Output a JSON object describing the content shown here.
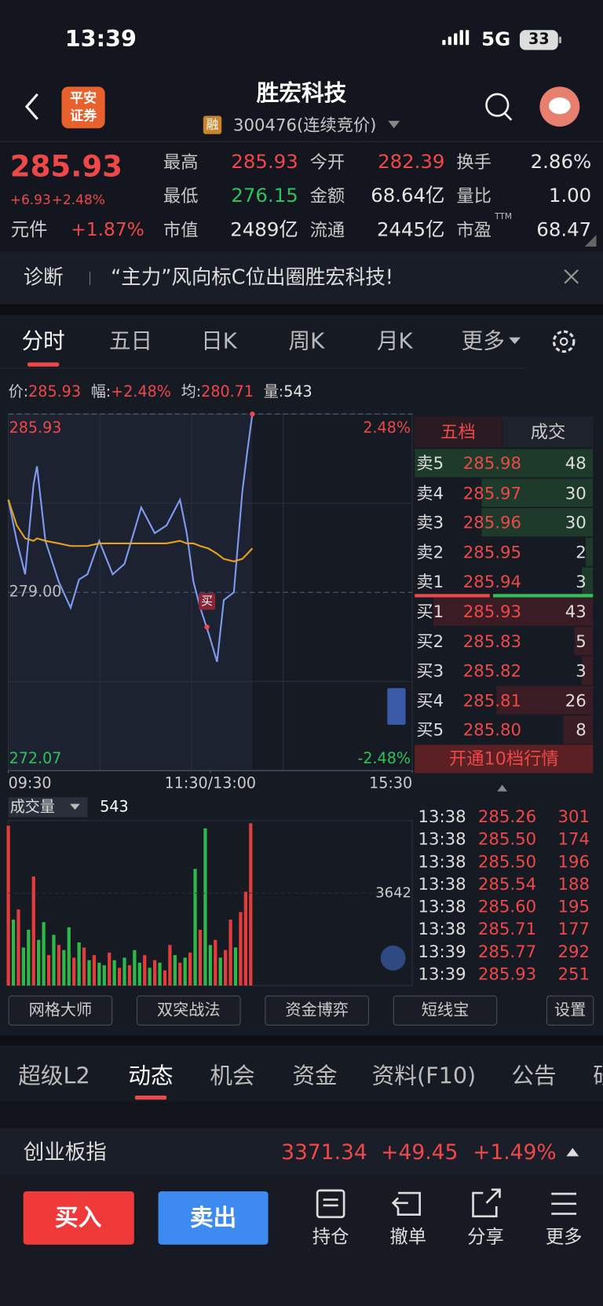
{
  "status_bar": {
    "time": "13:39",
    "network": "5G",
    "battery": "33"
  },
  "header": {
    "broker": [
      "平安",
      "证券"
    ],
    "title": "胜宏科技",
    "margin_tag": "融",
    "code": "300476(连续竞价)"
  },
  "quote": {
    "price": "285.93",
    "change": "+6.93",
    "change_pct": "+2.48%",
    "sector": "元件",
    "sector_change": "+1.87%",
    "pe_suffix": "TTM",
    "fields": [
      {
        "label": "最高",
        "value": "285.93",
        "color": "#f04848"
      },
      {
        "label": "今开",
        "value": "282.39",
        "color": "#f04848"
      },
      {
        "label": "换手",
        "value": "2.86%",
        "color": "#e6e6e6"
      },
      {
        "label": "最低",
        "value": "276.15",
        "color": "#2fc25b"
      },
      {
        "label": "金额",
        "value": "68.64亿",
        "color": "#e6e6e6"
      },
      {
        "label": "量比",
        "value": "1.00",
        "color": "#e6e6e6"
      },
      {
        "label": "市值",
        "value": "2489亿",
        "color": "#e6e6e6"
      },
      {
        "label": "流通",
        "value": "2445亿",
        "color": "#e6e6e6"
      },
      {
        "label": "市盈",
        "value": "68.47",
        "color": "#e6e6e6"
      }
    ]
  },
  "diagnosis": {
    "label": "诊断",
    "text": "“主力”风向标C位出圈胜宏科技!"
  },
  "chart_tabs": {
    "items": [
      "分时",
      "五日",
      "日K",
      "周K",
      "月K",
      "更多"
    ],
    "active": 0
  },
  "chart_info": [
    {
      "label": "价:",
      "value": "285.93",
      "color": "#f04848"
    },
    {
      "label": "幅:",
      "value": "+2.48%",
      "color": "#f04848"
    },
    {
      "label": "均:",
      "value": "280.71",
      "color": "#f04848"
    },
    {
      "label": "量:",
      "value": "543",
      "color": "#e6e6e6"
    }
  ],
  "chart_data": [
    {
      "type": "line",
      "x": [
        0,
        5,
        10,
        15,
        17,
        22,
        30,
        37,
        42,
        47,
        54,
        62,
        69,
        79,
        87,
        94,
        102,
        106,
        110,
        114,
        119,
        124,
        128,
        134,
        139,
        142,
        145
      ],
      "series": [
        {
          "color": "#7f9bf0",
          "values": [
            282.6,
            281.0,
            279.7,
            283.2,
            283.9,
            281.0,
            279.4,
            278.4,
            279.5,
            279.7,
            281.0,
            279.7,
            280.1,
            282.3,
            281.3,
            281.6,
            282.6,
            281.3,
            279.4,
            278.4,
            277.4,
            276.3,
            278.7,
            279.0,
            282.9,
            284.5,
            285.93
          ]
        },
        {
          "color": "#e8a020",
          "values": [
            282.6,
            281.6,
            281.1,
            281.0,
            281.1,
            281.0,
            280.9,
            280.8,
            280.8,
            280.8,
            280.9,
            280.9,
            280.9,
            280.9,
            280.9,
            280.9,
            281.0,
            280.9,
            280.9,
            280.8,
            280.7,
            280.5,
            280.3,
            280.2,
            280.3,
            280.5,
            280.71
          ]
        }
      ],
      "xlim": [
        0,
        240
      ],
      "xticks": [
        {
          "value": 0,
          "label": "09:30"
        },
        {
          "value": 120,
          "label": "11:30/13:00"
        },
        {
          "value": 240,
          "label": "15:30"
        }
      ],
      "ylim": [
        272.07,
        285.93
      ],
      "yticks": [
        285.93,
        {
          "value": 279,
          "label": "279.00"
        },
        272.07
      ],
      "y2lim": [
        -2.48,
        2.48
      ],
      "y2ticks": [
        {
          "value": 2.48,
          "label": "2.48%"
        },
        {
          "value": -2.48,
          "label": "-2.48%"
        }
      ],
      "grid": true,
      "buy_marker": {
        "label": "买",
        "x": 118,
        "value": 277.65
      }
    },
    {
      "type": "bar",
      "title": "成交量",
      "latest": "543",
      "x": [
        0,
        3,
        6,
        9,
        12,
        15,
        18,
        21,
        24,
        27,
        30,
        33,
        36,
        39,
        42,
        45,
        48,
        51,
        54,
        57,
        60,
        63,
        66,
        69,
        72,
        75,
        78,
        81,
        84,
        87,
        90,
        93,
        96,
        99,
        102,
        105,
        108,
        111,
        114,
        117,
        120,
        123,
        126,
        129,
        132,
        135,
        138,
        141,
        144
      ],
      "values": [
        6300,
        2600,
        3000,
        1500,
        2200,
        4300,
        1800,
        2500,
        1200,
        2000,
        1600,
        1400,
        2300,
        1100,
        1700,
        1500,
        1000,
        1200,
        900,
        800,
        1300,
        1000,
        700,
        1100,
        800,
        1400,
        900,
        1200,
        700,
        1000,
        900,
        600,
        1600,
        1200,
        900,
        1100,
        1300,
        4600,
        2200,
        6200,
        1600,
        1800,
        1100,
        1400,
        2600,
        1500,
        2900,
        3700,
        6400
      ],
      "colors": [
        "#e33c3c",
        "#2fb84a",
        "#e33c3c",
        "#2fb84a",
        "#2fb84a",
        "#e33c3c",
        "#2fb84a",
        "#2fb84a",
        "#e33c3c",
        "#2fb84a",
        "#e33c3c",
        "#2fb84a",
        "#2fb84a",
        "#e33c3c",
        "#2fb84a",
        "#e33c3c",
        "#2fb84a",
        "#e33c3c",
        "#2fb84a",
        "#2fb84a",
        "#e33c3c",
        "#2fb84a",
        "#e33c3c",
        "#2fb84a",
        "#e33c3c",
        "#2fb84a",
        "#2fb84a",
        "#e33c3c",
        "#2fb84a",
        "#e33c3c",
        "#2fb84a",
        "#e33c3c",
        "#e33c3c",
        "#2fb84a",
        "#e33c3c",
        "#2fb84a",
        "#e33c3c",
        "#2fb84a",
        "#e33c3c",
        "#2fb84a",
        "#2fb84a",
        "#e33c3c",
        "#2fb84a",
        "#e33c3c",
        "#e33c3c",
        "#2fb84a",
        "#e33c3c",
        "#e33c3c",
        "#e33c3c"
      ],
      "ylim": [
        0,
        6440
      ],
      "yticks": [
        3642
      ]
    }
  ],
  "order_book": {
    "tabs": [
      "五档",
      "成交"
    ],
    "asks": [
      {
        "label": "卖5",
        "price": "285.98",
        "qty": 48
      },
      {
        "label": "卖4",
        "price": "285.97",
        "qty": 30
      },
      {
        "label": "卖3",
        "price": "285.96",
        "qty": 30
      },
      {
        "label": "卖2",
        "price": "285.95",
        "qty": 2
      },
      {
        "label": "卖1",
        "price": "285.94",
        "qty": 3
      }
    ],
    "bids": [
      {
        "label": "买1",
        "price": "285.93",
        "qty": 43
      },
      {
        "label": "买2",
        "price": "285.83",
        "qty": 5
      },
      {
        "label": "买3",
        "price": "285.82",
        "qty": 3
      },
      {
        "label": "买4",
        "price": "285.81",
        "qty": 26
      },
      {
        "label": "买5",
        "price": "285.80",
        "qty": 8
      }
    ],
    "upgrade": "开通10档行情"
  },
  "trades": [
    {
      "time": "13:38",
      "price": "285.26",
      "qty": 301
    },
    {
      "time": "13:38",
      "price": "285.50",
      "qty": 174
    },
    {
      "time": "13:38",
      "price": "285.50",
      "qty": 196
    },
    {
      "time": "13:38",
      "price": "285.54",
      "qty": 188
    },
    {
      "time": "13:38",
      "price": "285.60",
      "qty": 195
    },
    {
      "time": "13:38",
      "price": "285.71",
      "qty": 177
    },
    {
      "time": "13:39",
      "price": "285.77",
      "qty": 292
    },
    {
      "time": "13:39",
      "price": "285.93",
      "qty": 251
    }
  ],
  "tools": [
    "网格大师",
    "双突战法",
    "资金博弈",
    "短线宝",
    "设置"
  ],
  "section_tabs": {
    "items": [
      "超级L2",
      "动态",
      "机会",
      "资金",
      "资料(F10)",
      "公告",
      "研"
    ],
    "active": 1
  },
  "index_bar": {
    "name": "创业板指",
    "value": "3371.34",
    "change": "+49.45",
    "change_pct": "+1.49%"
  },
  "bottom_bar": {
    "buy": "买入",
    "sell": "卖出",
    "actions": [
      "持仓",
      "撤单",
      "分享",
      "更多"
    ]
  }
}
